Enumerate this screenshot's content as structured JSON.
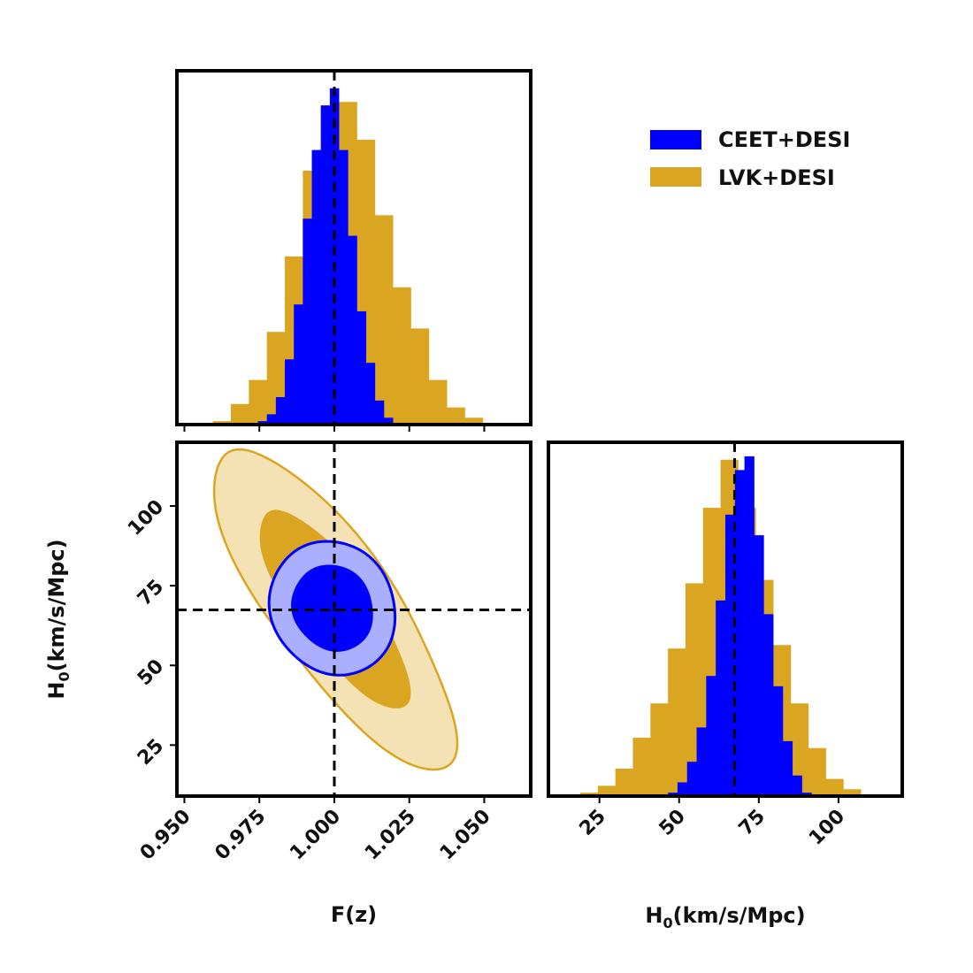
{
  "chart_data": {
    "type": "corner",
    "colors": {
      "CEET+DESI": "#0000ff",
      "CEET+DESI_outer": "#aab0ff",
      "LVK+DESI": "#daa520",
      "LVK+DESI_outer": "#f5e2b4"
    },
    "legend": {
      "placement": "top-right",
      "entries": [
        "CEET+DESI",
        "LVK+DESI"
      ]
    },
    "truth": {
      "F": 1.0,
      "H0": 67.4
    },
    "parameters": {
      "F": {
        "label": "F(z)",
        "range": [
          0.9475,
          1.0655
        ],
        "ticks": [
          0.95,
          0.975,
          1.0,
          1.025,
          1.05
        ],
        "tick_labels": [
          "0.950",
          "0.975",
          "1.000",
          "1.025",
          "1.050"
        ]
      },
      "H0": {
        "label_main": "H",
        "label_sub": "0",
        "label_rest": "(km/s/Mpc)",
        "range": [
          9,
          120
        ],
        "ticks": [
          25,
          50,
          75,
          100
        ],
        "tick_labels": [
          "25",
          "50",
          "75",
          "100"
        ]
      }
    },
    "hist_F": {
      "LVK+DESI": {
        "bin_edges": [
          0.9595,
          0.9655,
          0.9715,
          0.9775,
          0.9835,
          0.9895,
          0.9955,
          1.0015,
          1.0075,
          1.0135,
          1.0195,
          1.0255,
          1.0315,
          1.0375,
          1.0435,
          1.0495
        ],
        "counts": [
          0.01,
          0.06,
          0.13,
          0.27,
          0.49,
          0.74,
          0.92,
          0.94,
          0.83,
          0.61,
          0.4,
          0.28,
          0.13,
          0.05,
          0.02
        ]
      },
      "CEET+DESI": {
        "bin_edges": [
          0.9715,
          0.9745,
          0.9775,
          0.9805,
          0.9835,
          0.9865,
          0.9895,
          0.9925,
          0.9955,
          0.9985,
          1.0015,
          1.0045,
          1.0075,
          1.0105,
          1.0135,
          1.0165,
          1.0195
        ],
        "counts": [
          0.005,
          0.01,
          0.03,
          0.08,
          0.19,
          0.35,
          0.6,
          0.8,
          0.93,
          0.98,
          0.8,
          0.55,
          0.33,
          0.18,
          0.07,
          0.02
        ]
      }
    },
    "hist_H0": {
      "LVK+DESI": {
        "bin_edges": [
          19,
          24.5,
          30,
          35.5,
          41,
          46.5,
          52,
          57.5,
          63,
          68.5,
          74,
          79.5,
          85,
          90.5,
          96,
          101.5,
          107,
          112.5
        ],
        "counts": [
          0.01,
          0.03,
          0.08,
          0.17,
          0.27,
          0.43,
          0.62,
          0.84,
          0.98,
          0.84,
          0.63,
          0.44,
          0.27,
          0.14,
          0.05,
          0.02,
          0.005
        ]
      },
      "CEET+DESI": {
        "bin_edges": [
          43.5,
          46.5,
          49.5,
          52.5,
          55.5,
          58.5,
          61.5,
          64.5,
          67.5,
          70.5,
          73.5,
          76.5,
          79.5,
          82.5,
          85.5,
          88.5,
          91.5
        ],
        "counts": [
          0.005,
          0.01,
          0.04,
          0.1,
          0.2,
          0.35,
          0.57,
          0.82,
          0.95,
          0.99,
          0.76,
          0.53,
          0.32,
          0.16,
          0.06,
          0.01
        ]
      }
    },
    "contours": {
      "LVK+DESI": {
        "mean": [
          1.0,
          68
        ],
        "sigma": [
          0.0165,
          20.5
        ],
        "rho": -0.8,
        "levels": [
          1.52,
          2.45
        ]
      },
      "CEET+DESI": {
        "mean": [
          0.9995,
          68
        ],
        "sigma": [
          0.0105,
          10.5
        ],
        "rho": -0.1,
        "levels": [
          1.3,
          2.0
        ]
      }
    }
  }
}
